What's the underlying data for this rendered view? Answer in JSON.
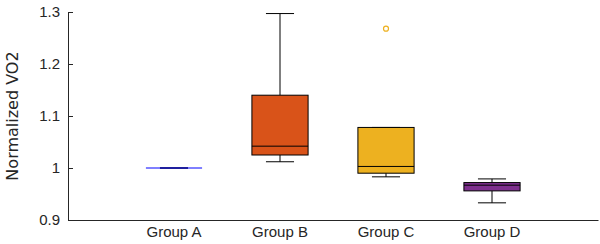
{
  "chart_data": {
    "type": "box",
    "y_label": "Normalized VO2",
    "categories": [
      "Group A",
      "Group B",
      "Group C",
      "Group D"
    ],
    "stats": [
      {
        "min": 1.0,
        "q1": 1.0,
        "median": 1.0,
        "q3": 1.0,
        "max": 1.0,
        "outliers": []
      },
      {
        "min": 1.012,
        "q1": 1.025,
        "median": 1.042,
        "q3": 1.14,
        "max": 1.297,
        "outliers": []
      },
      {
        "min": 0.983,
        "q1": 0.99,
        "median": 1.003,
        "q3": 1.078,
        "max": 1.078,
        "outliers": [
          1.268
        ]
      },
      {
        "min": 0.933,
        "q1": 0.956,
        "median": 0.967,
        "q3": 0.972,
        "max": 0.979,
        "outliers": []
      }
    ],
    "colors": [
      "#0000ff",
      "#d95319",
      "#edb120",
      "#7e2f8e"
    ],
    "ylim": [
      0.9,
      1.3
    ],
    "yticks": [
      0.9,
      1,
      1.1,
      1.2,
      1.3
    ],
    "grid": false
  }
}
